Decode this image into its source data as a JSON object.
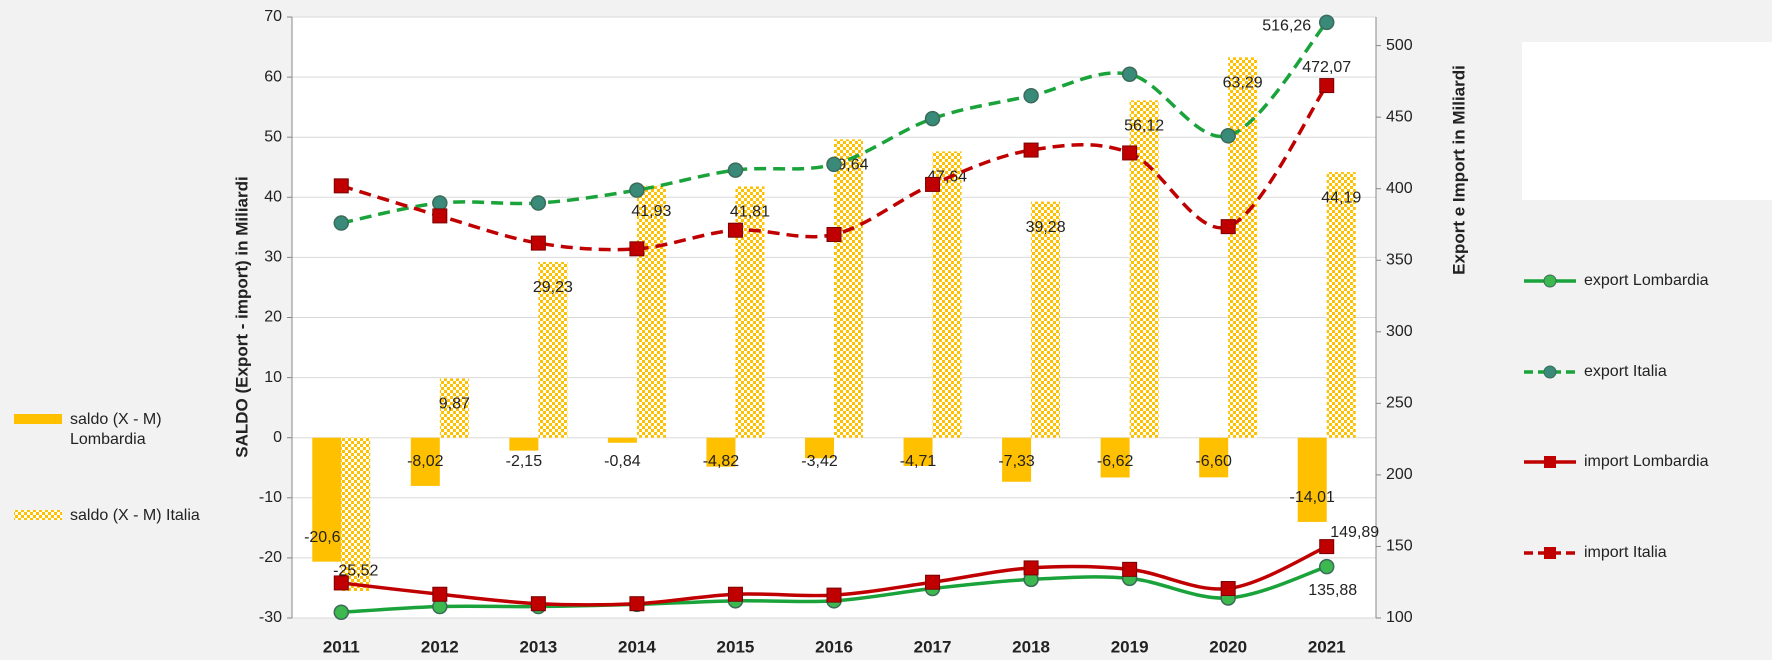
{
  "chart_data": {
    "type": "combo",
    "categories": [
      "2011",
      "2012",
      "2013",
      "2014",
      "2015",
      "2016",
      "2017",
      "2018",
      "2019",
      "2020",
      "2021"
    ],
    "ylabel": "SALDO (Export - import) in Miliardi",
    "y2label": "Export e Import in Miliardi",
    "ylim": [
      -30,
      70
    ],
    "yticks": [
      -30,
      -20,
      -10,
      0,
      10,
      20,
      30,
      40,
      50,
      60,
      70
    ],
    "y2lim": [
      100,
      520
    ],
    "y2ticks": [
      100,
      150,
      200,
      250,
      300,
      350,
      400,
      450,
      500
    ],
    "grid": true,
    "series": [
      {
        "name": "saldo (X - M) Lombardia",
        "type": "bar",
        "color": "#ffc000",
        "pattern": "solid",
        "axis": "y",
        "values": [
          -20.63,
          -8.02,
          -2.15,
          -0.84,
          -4.82,
          -3.42,
          -4.71,
          -7.33,
          -6.62,
          -6.6,
          -14.01
        ],
        "value_labels": [
          "-20,63",
          "-8,02",
          "-2,15",
          "-0,84",
          "-4,82",
          "-3,42",
          "-4,71",
          "-7,33",
          "-6,62",
          "-6,60",
          "-14,01"
        ]
      },
      {
        "name": "saldo (X - M) Italia",
        "type": "bar",
        "color": "#ffc000",
        "pattern": "checker",
        "axis": "y",
        "values": [
          -25.52,
          9.87,
          29.23,
          41.93,
          41.81,
          49.64,
          47.64,
          39.28,
          56.12,
          63.29,
          44.19
        ],
        "value_labels": [
          "-25,52",
          "9,87",
          "29,23",
          "41,93",
          "41,81",
          "49,64",
          "47,64",
          "39,28",
          "56,12",
          "63,29",
          "44,19"
        ]
      },
      {
        "name": "export Lombardia",
        "type": "line",
        "color": "#1aa33a",
        "dash": false,
        "marker": "circle",
        "marker_color": "#3cb84e",
        "axis": "y2",
        "values": [
          104,
          108,
          108,
          109.5,
          112,
          112,
          120.6,
          127,
          127.7,
          114,
          135.88
        ],
        "value_labels": [
          null,
          null,
          null,
          null,
          null,
          null,
          null,
          null,
          null,
          null,
          "135,88"
        ]
      },
      {
        "name": "export Italia",
        "type": "line",
        "color": "#1aa33a",
        "dash": true,
        "marker": "circle",
        "marker_color": "#3a8a7a",
        "axis": "y2",
        "values": [
          376,
          390,
          390,
          399,
          413,
          417,
          449,
          465,
          480,
          437,
          516.26
        ],
        "value_labels": [
          null,
          null,
          null,
          null,
          null,
          null,
          null,
          null,
          null,
          null,
          "516,26"
        ]
      },
      {
        "name": "import Lombardia",
        "type": "line",
        "color": "#c00000",
        "dash": false,
        "marker": "square",
        "marker_color": "#c00000",
        "axis": "y2",
        "values": [
          124.5,
          116.6,
          110,
          110,
          116.6,
          116,
          125,
          135,
          134,
          120.6,
          149.89
        ],
        "value_labels": [
          null,
          null,
          null,
          null,
          null,
          null,
          null,
          null,
          null,
          null,
          "149,89"
        ]
      },
      {
        "name": "import Italia",
        "type": "line",
        "color": "#c00000",
        "dash": true,
        "marker": "square",
        "marker_color": "#c00000",
        "axis": "y2",
        "values": [
          402,
          381,
          362,
          358,
          371,
          368,
          403,
          427,
          425,
          373.5,
          472.07
        ],
        "value_labels": [
          null,
          null,
          null,
          null,
          null,
          null,
          null,
          null,
          null,
          null,
          "472,07"
        ]
      }
    ]
  }
}
